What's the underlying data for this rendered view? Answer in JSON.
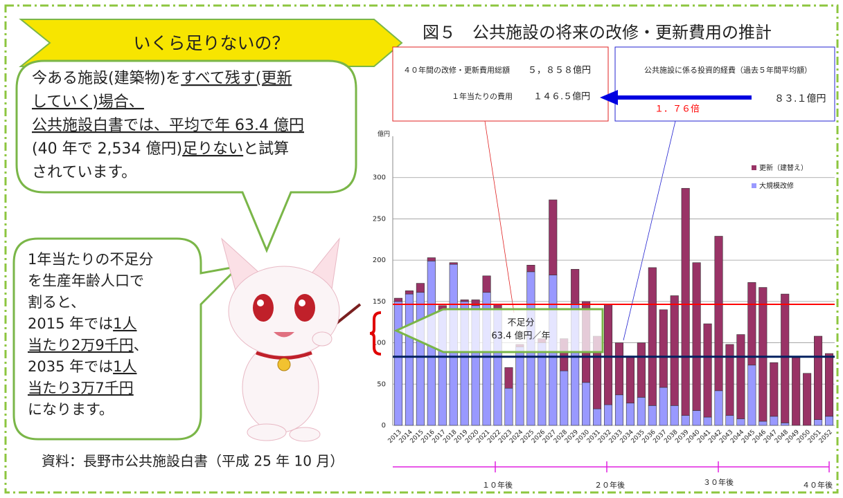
{
  "banner": "いくら足りないの？",
  "callout_1": [
    [
      "今ある施設(建築物)を",
      "すべて残す(更新"
    ],
    [
      "していく)場合、"
    ],
    [
      "公共施設白書では、平均で年 63.4 億円"
    ],
    [
      "(40 年で 2,534 億円)",
      "足りない",
      "と試算"
    ],
    [
      "されています。"
    ]
  ],
  "callout_2": [
    [
      "1年当たりの不足分"
    ],
    [
      "を生産年齢人口で"
    ],
    [
      "割ると、"
    ],
    [
      "2015 年では",
      "1人"
    ],
    [
      "当たり2万9千円",
      "、"
    ],
    [
      "2035 年では",
      "1人"
    ],
    [
      "当たり3万7千円"
    ],
    [
      "になります。"
    ]
  ],
  "source": "資料：長野市公共施設白書（平成 25 年 10 月）",
  "chart_data": {
    "type": "bar",
    "stacked": true,
    "title": "図５　公共施設の将来の改修・更新費用の推計",
    "y_unit": "億円",
    "box_total": {
      "label": "４０年間の改修・更新費用総額",
      "value": "５，８５８億円",
      "per_year_label": "１年当たりの費用",
      "per_year_value": "１４６.５億円"
    },
    "box_invest": {
      "label": "公共施設に係る投資的経費（過去５年間平均額）",
      "value": "８３.１億円"
    },
    "ratio": "１．７６倍",
    "shortfall": [
      "不足分",
      "63.4 億円／年"
    ],
    "timeline": [
      "１０年後",
      "２０年後",
      "３０年後",
      "４０年後"
    ],
    "categories": [
      "2013",
      "2014",
      "2015",
      "2016",
      "2017",
      "2018",
      "2019",
      "2020",
      "2021",
      "2022",
      "2023",
      "2024",
      "2025",
      "2026",
      "2027",
      "2028",
      "2029",
      "2030",
      "2031",
      "2032",
      "2033",
      "2034",
      "2035",
      "2036",
      "2037",
      "2038",
      "2039",
      "2040",
      "2041",
      "2042",
      "2043",
      "2044",
      "2045",
      "2046",
      "2047",
      "2048",
      "2049",
      "2050",
      "2051",
      "2052"
    ],
    "series": [
      {
        "name": "大規模改修",
        "color": "#9999ff",
        "values": [
          150,
          159,
          161,
          199,
          139,
          195,
          150,
          145,
          161,
          140,
          45,
          95,
          186,
          100,
          182,
          66,
          148,
          52,
          20,
          25,
          37,
          27,
          34,
          24,
          46,
          24,
          12,
          18,
          10,
          42,
          12,
          8,
          73,
          5,
          11,
          3,
          0,
          0,
          7,
          11
        ]
      },
      {
        "name": "更新（建替え）",
        "color": "#993366",
        "values": [
          4,
          4,
          11,
          4,
          6,
          2,
          2,
          7,
          20,
          7,
          25,
          3,
          8,
          5,
          91,
          39,
          41,
          98,
          88,
          122,
          63,
          57,
          66,
          167,
          94,
          133,
          275,
          179,
          113,
          187,
          86,
          102,
          100,
          162,
          65,
          156,
          82,
          63,
          101,
          76
        ]
      }
    ],
    "ref_lines": [
      {
        "value": 146.5,
        "color": "#ff0000"
      },
      {
        "value": 83.1,
        "color": "#002060"
      }
    ],
    "ylim": [
      0,
      350
    ],
    "yticks": [
      0,
      50,
      100,
      150,
      200,
      250,
      300
    ],
    "grid": true
  }
}
